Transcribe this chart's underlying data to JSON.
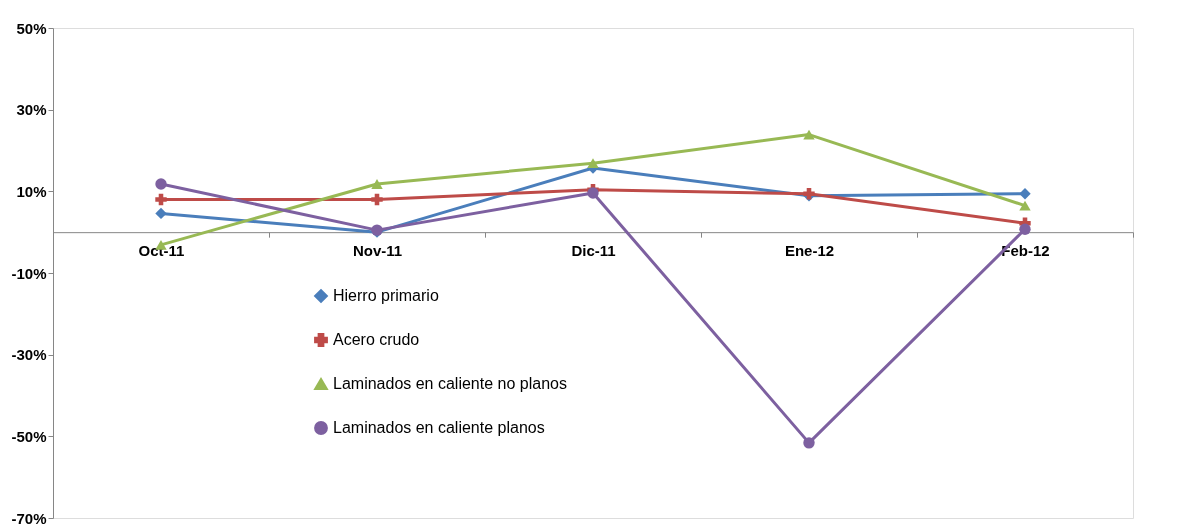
{
  "chart_data": {
    "type": "line",
    "categories": [
      "Oct-11",
      "Nov-11",
      "Dic-11",
      "Ene-12",
      "Feb-12"
    ],
    "series": [
      {
        "name": "Hierro primario",
        "color": "#4a7ebb",
        "marker": "diamond",
        "values": [
          4.6,
          0,
          15.7,
          8.9,
          9.4
        ]
      },
      {
        "name": "Acero crudo",
        "color": "#be4b48",
        "marker": "cross",
        "values": [
          8.0,
          8.0,
          10.4,
          9.4,
          2.2
        ]
      },
      {
        "name": "Laminados en caliente no planos",
        "color": "#98b954",
        "marker": "triangle",
        "values": [
          -3.1,
          11.8,
          16.9,
          23.9,
          6.5
        ]
      },
      {
        "name": "Laminados en caliente planos",
        "color": "#7d60a0",
        "marker": "circle",
        "values": [
          11.8,
          0.5,
          9.6,
          -51.6,
          0.7
        ]
      }
    ],
    "ylim": [
      -70,
      50
    ],
    "yticks": [
      {
        "value": -70,
        "label": "-70%"
      },
      {
        "value": -50,
        "label": "-50%"
      },
      {
        "value": -30,
        "label": "-30%"
      },
      {
        "value": -10,
        "label": "-10%"
      },
      {
        "value": 10,
        "label": "10%"
      },
      {
        "value": 30,
        "label": "30%"
      },
      {
        "value": 50,
        "label": "50%"
      }
    ],
    "grid": false,
    "legend": "bottom"
  }
}
